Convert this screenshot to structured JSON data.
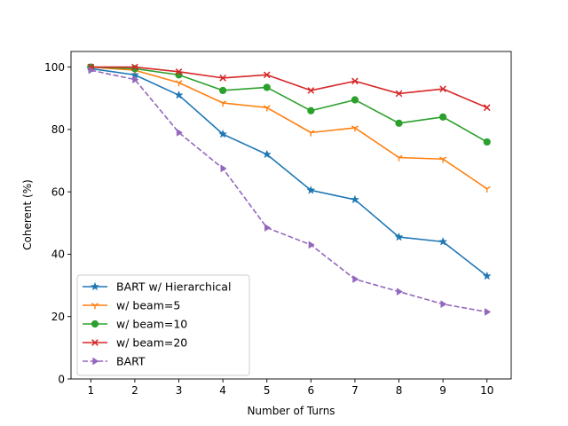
{
  "chart_data": {
    "type": "line",
    "title": "",
    "xlabel": "Number of Turns",
    "ylabel": "Coherent (%)",
    "x": [
      1,
      2,
      3,
      4,
      5,
      6,
      7,
      8,
      9,
      10
    ],
    "xlim": [
      0.55,
      10.55
    ],
    "ylim": [
      0,
      105
    ],
    "xticks": [
      1,
      2,
      3,
      4,
      5,
      6,
      7,
      8,
      9,
      10
    ],
    "yticks": [
      0,
      20,
      40,
      60,
      80,
      100
    ],
    "grid": false,
    "legend_position": "lower-left",
    "series": [
      {
        "name": "BART w/ Hierarchical",
        "color": "#1f77b4",
        "marker": "star",
        "linestyle": "solid",
        "values": [
          99.5,
          97.5,
          91.0,
          78.5,
          72.0,
          60.5,
          57.5,
          45.5,
          44.0,
          33.0
        ]
      },
      {
        "name": "w/ beam=5",
        "color": "#ff7f0e",
        "marker": "tri",
        "linestyle": "solid",
        "values": [
          100,
          99.0,
          95.0,
          88.5,
          87.0,
          79.0,
          80.5,
          71.0,
          70.5,
          61.0
        ]
      },
      {
        "name": "w/ beam=10",
        "color": "#2ca02c",
        "marker": "circle",
        "linestyle": "solid",
        "values": [
          100,
          99.5,
          97.5,
          92.5,
          93.5,
          86.0,
          89.5,
          82.0,
          84.0,
          76.0
        ]
      },
      {
        "name": "w/ beam=20",
        "color": "#d62728",
        "marker": "x",
        "linestyle": "solid",
        "values": [
          100,
          100,
          98.5,
          96.5,
          97.5,
          92.5,
          95.5,
          91.5,
          93.0,
          87.0
        ]
      },
      {
        "name": "BART",
        "color": "#9467bd",
        "marker": "triangle-right",
        "linestyle": "dashed",
        "values": [
          99.0,
          96.0,
          79.0,
          67.5,
          48.5,
          43.0,
          32.0,
          28.0,
          24.0,
          21.5
        ]
      }
    ]
  }
}
